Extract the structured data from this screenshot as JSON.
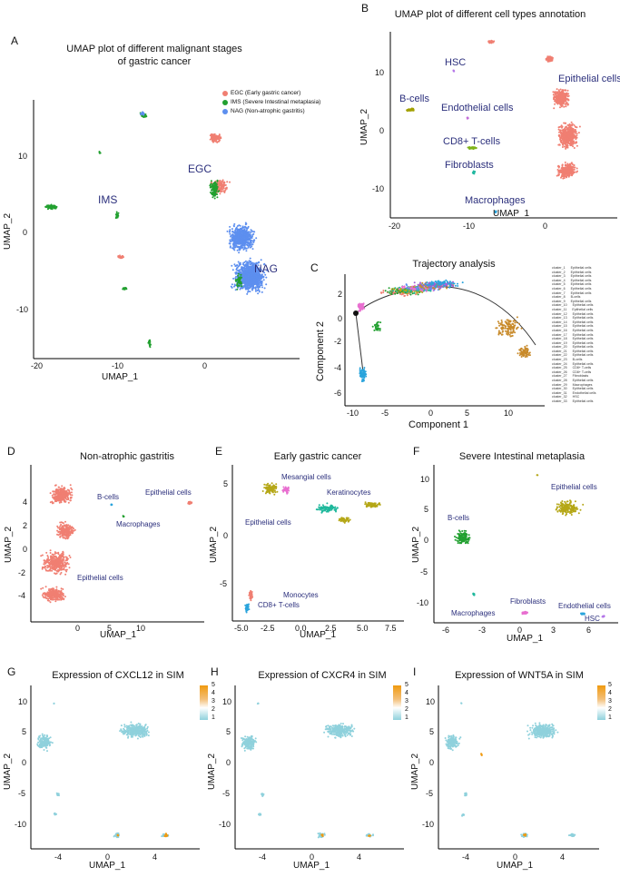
{
  "colors": {
    "egc": "#f07f72",
    "ims": "#22a030",
    "nag": "#5d8fef",
    "epi": "#f07f72",
    "bcell": "#a2a000",
    "hsc": "#b577e8",
    "endo": "#c46ed8",
    "cd8": "#7fb31a",
    "fibro": "#22b8a0",
    "macro": "#2aa4dc",
    "olive": "#b5a717",
    "teal": "#1fb89c",
    "pink": "#e86fd0",
    "expr_low": "#8fd1dc",
    "expr_high": "#f09a10",
    "annot": "#2b2f7c"
  },
  "panelA": {
    "label": "A",
    "title_line1": "UMAP plot of different malignant stages",
    "title_line2": "of gastric cancer",
    "legend": [
      "EGC (Early gastric cancer)",
      "IMS (Severe Intestinal metaplasia)",
      "NAG (Non-atrophic gastritis)"
    ],
    "annotations": [
      "EGC",
      "IMS",
      "NAG"
    ],
    "xlabel": "UMAP_1",
    "ylabel": "UMAP_2",
    "xticks": [
      "-20",
      "-10",
      "0"
    ],
    "yticks": [
      "10",
      "0",
      "-10"
    ]
  },
  "panelB": {
    "label": "B",
    "title": "UMAP plot of different cell types annotation",
    "annotations": [
      "HSC",
      "B-cells",
      "Epithelial cells",
      "Endothelial cells",
      "CD8+ T-cells",
      "Fibroblasts",
      "Macrophages"
    ],
    "xlabel": "UMAP_1",
    "ylabel": "UMAP_2",
    "xticks": [
      "-20",
      "-10",
      "0"
    ],
    "yticks": [
      "10",
      "0",
      "-10"
    ]
  },
  "panelC": {
    "label": "C",
    "title": "Trajectory analysis",
    "xlabel": "Component 1",
    "ylabel": "Component 2",
    "xticks": [
      "-10",
      "-5",
      "0",
      "5",
      "10"
    ],
    "yticks": [
      "2",
      "0",
      "-2",
      "-4",
      "-6"
    ],
    "clusters": [
      [
        "cluster_1",
        "Epithelial cells"
      ],
      [
        "cluster_2",
        "Epithelial cells"
      ],
      [
        "cluster_3",
        "Epithelial cells"
      ],
      [
        "cluster_4",
        "Epithelial cells"
      ],
      [
        "cluster_5",
        "Epithelial cells"
      ],
      [
        "cluster_6",
        "Epithelial cells"
      ],
      [
        "cluster_7",
        "Epithelial cells"
      ],
      [
        "cluster_8",
        "B-cells"
      ],
      [
        "cluster_9",
        "Epithelial cells"
      ],
      [
        "cluster_10",
        "Epithelial cells"
      ],
      [
        "cluster_11",
        "Epithelial cells"
      ],
      [
        "cluster_12",
        "Epithelial cells"
      ],
      [
        "cluster_13",
        "Epithelial cells"
      ],
      [
        "cluster_14",
        "Epithelial cells"
      ],
      [
        "cluster_15",
        "Epithelial cells"
      ],
      [
        "cluster_16",
        "Epithelial cells"
      ],
      [
        "cluster_17",
        "Epithelial cells"
      ],
      [
        "cluster_18",
        "Epithelial cells"
      ],
      [
        "cluster_19",
        "Epithelial cells"
      ],
      [
        "cluster_20",
        "Epithelial cells"
      ],
      [
        "cluster_21",
        "Epithelial cells"
      ],
      [
        "cluster_22",
        "Epithelial cells"
      ],
      [
        "cluster_23",
        "B-cells"
      ],
      [
        "cluster_24",
        "Epithelial cells"
      ],
      [
        "cluster_25",
        "CD8+ T-cells"
      ],
      [
        "cluster_26",
        "CD8+ T-cells"
      ],
      [
        "cluster_27",
        "Fibroblasts"
      ],
      [
        "cluster_28",
        "Epithelial cells"
      ],
      [
        "cluster_29",
        "Macrophages"
      ],
      [
        "cluster_30",
        "Epithelial cells"
      ],
      [
        "cluster_31",
        "Endothelial cells"
      ],
      [
        "cluster_32",
        "HSC"
      ],
      [
        "cluster_33",
        "Epithelial cells"
      ]
    ]
  },
  "panelD": {
    "label": "D",
    "title": "Non-atrophic gastritis",
    "annotations": [
      "B-cells",
      "Epithelial cells",
      "Macrophages",
      "Epithelial cells"
    ],
    "xlabel": "UMAP_1",
    "ylabel": "UMAP_2",
    "xticks": [
      "0",
      "5",
      "10"
    ],
    "yticks": [
      "4",
      "2",
      "0",
      "-2",
      "-4"
    ]
  },
  "panelE": {
    "label": "E",
    "title": "Early gastric cancer",
    "annotations": [
      "Mesangial cells",
      "Keratinocytes",
      "Epithelial cells",
      "Monocytes",
      "CD8+ T-cells"
    ],
    "xlabel": "UMAP_1",
    "ylabel": "UMAP_2",
    "xticks": [
      "-5.0",
      "-2.5",
      "0.0",
      "2.5",
      "5.0",
      "7.5"
    ],
    "yticks": [
      "5",
      "0",
      "-5"
    ]
  },
  "panelF": {
    "label": "F",
    "title": "Severe Intestinal metaplasia",
    "annotations": [
      "Epithelial cells",
      "B-cells",
      "Fibroblasts",
      "Endothelial cells",
      "Macrophages",
      "HSC"
    ],
    "xlabel": "UMAP_1",
    "ylabel": "UMAP_2",
    "xticks": [
      "-6",
      "-3",
      "0",
      "3",
      "6"
    ],
    "yticks": [
      "10",
      "5",
      "0",
      "-5",
      "-10"
    ]
  },
  "panelG": {
    "label": "G",
    "title": "Expression of CXCL12 in SIM",
    "xlabel": "UMAP_1",
    "ylabel": "UMAP_2",
    "xticks": [
      "-4",
      "0",
      "4"
    ],
    "yticks": [
      "10",
      "5",
      "0",
      "-5",
      "-10"
    ],
    "colorbar": [
      "5",
      "4",
      "3",
      "2",
      "1"
    ]
  },
  "panelH": {
    "label": "H",
    "title": "Expression of CXCR4 in SIM",
    "xlabel": "UMAP_1",
    "ylabel": "UMAP_2",
    "xticks": [
      "-4",
      "0",
      "4"
    ],
    "yticks": [
      "10",
      "5",
      "0",
      "-5",
      "-10"
    ],
    "colorbar": [
      "5",
      "4",
      "3",
      "2",
      "1"
    ]
  },
  "panelI": {
    "label": "I",
    "title": "Expression of WNT5A in SIM",
    "xlabel": "UMAP_1",
    "ylabel": "UMAP_2",
    "xticks": [
      "-4",
      "0",
      "4"
    ],
    "yticks": [
      "10",
      "5",
      "0",
      "-5",
      "-10"
    ],
    "colorbar": [
      "5",
      "4",
      "3",
      "2",
      "1"
    ]
  }
}
